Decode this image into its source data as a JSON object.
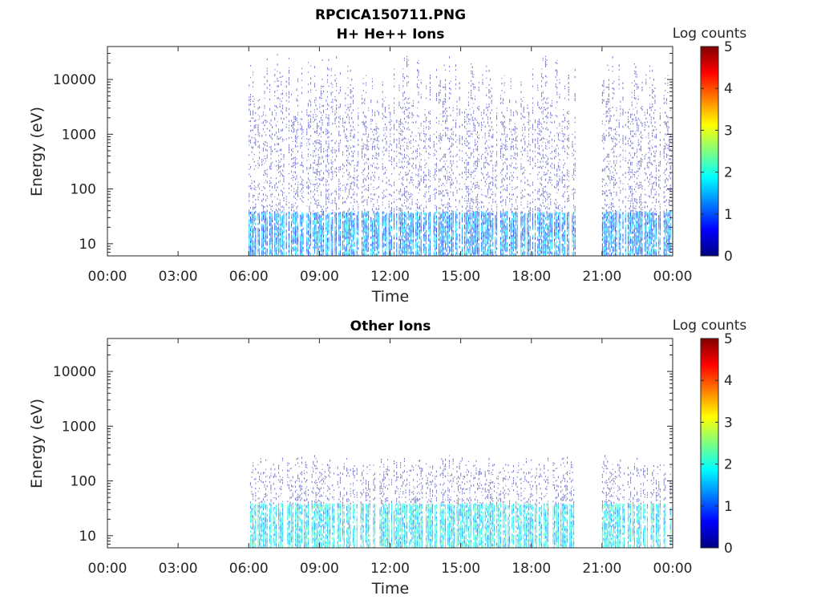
{
  "figure": {
    "title": "RPCICA150711.PNG"
  },
  "chart_data": [
    {
      "type": "heatmap",
      "title": "H+ He++ Ions",
      "xlabel": "Time",
      "ylabel": "Energy (eV)",
      "x_tick_labels": [
        "00:00",
        "03:00",
        "06:00",
        "09:00",
        "12:00",
        "15:00",
        "18:00",
        "21:00",
        "00:00"
      ],
      "x_range_hours": [
        0,
        24
      ],
      "y_scale": "log",
      "y_tick_values": [
        10,
        100,
        1000,
        10000
      ],
      "y_tick_labels": [
        "10",
        "100",
        "1000",
        "10000"
      ],
      "y_range": [
        6,
        40000
      ],
      "colorbar": {
        "label": "Log counts",
        "range": [
          0,
          5
        ],
        "tick_labels": [
          "0",
          "1",
          "2",
          "3",
          "4",
          "5"
        ],
        "colormap": "jet"
      },
      "data_segments_hours": [
        [
          6.0,
          19.9
        ],
        [
          21.0,
          23.9
        ]
      ],
      "typical_level_log_counts": {
        "low_energy": 1.3,
        "high_energy": 0.2
      },
      "low_energy_band_ev": [
        6,
        40
      ],
      "upper_energy_ev": 30000
    },
    {
      "type": "heatmap",
      "title": "Other Ions",
      "xlabel": "Time",
      "ylabel": "Energy (eV)",
      "x_tick_labels": [
        "00:00",
        "03:00",
        "06:00",
        "09:00",
        "12:00",
        "15:00",
        "18:00",
        "21:00",
        "00:00"
      ],
      "x_range_hours": [
        0,
        24
      ],
      "y_scale": "log",
      "y_tick_values": [
        10,
        100,
        1000,
        10000
      ],
      "y_tick_labels": [
        "10",
        "100",
        "1000",
        "10000"
      ],
      "y_range": [
        6,
        40000
      ],
      "colorbar": {
        "label": "Log counts",
        "range": [
          0,
          5
        ],
        "tick_labels": [
          "0",
          "1",
          "2",
          "3",
          "4",
          "5"
        ],
        "colormap": "jet"
      },
      "data_segments_hours": [
        [
          6.0,
          19.9
        ],
        [
          21.0,
          23.9
        ]
      ],
      "typical_level_log_counts": {
        "low_energy": 1.8,
        "high_energy": 0.1
      },
      "low_energy_band_ev": [
        6,
        40
      ],
      "upper_energy_ev": 300
    }
  ]
}
